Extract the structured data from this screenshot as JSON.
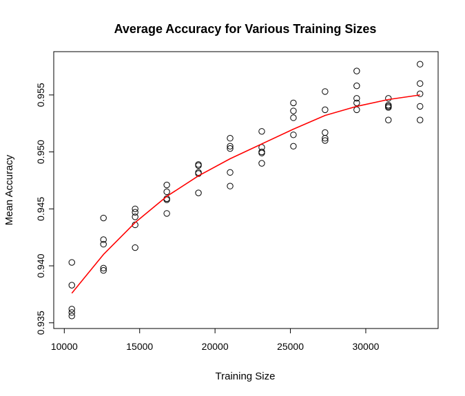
{
  "chart_data": {
    "type": "scatter",
    "title": "Average Accuracy for Various Training Sizes",
    "xlabel": "Training Size",
    "ylabel": "Mean Accuracy",
    "xlim": [
      9300,
      34800
    ],
    "ylim": [
      0.9345,
      0.9588
    ],
    "x_ticks": [
      10000,
      15000,
      20000,
      25000,
      30000
    ],
    "x_tick_labels": [
      "10000",
      "15000",
      "20000",
      "25000",
      "30000"
    ],
    "y_ticks": [
      0.935,
      0.94,
      0.945,
      0.95,
      0.955
    ],
    "y_tick_labels": [
      "0.935",
      "0.940",
      "0.945",
      "0.950",
      "0.955"
    ],
    "grid": false,
    "points": [
      [
        10500,
        0.9403
      ],
      [
        10500,
        0.9383
      ],
      [
        10500,
        0.9362
      ],
      [
        10500,
        0.9359
      ],
      [
        10500,
        0.9356
      ],
      [
        12600,
        0.9442
      ],
      [
        12600,
        0.9423
      ],
      [
        12600,
        0.9419
      ],
      [
        12600,
        0.9398
      ],
      [
        12600,
        0.9396
      ],
      [
        14700,
        0.945
      ],
      [
        14700,
        0.9447
      ],
      [
        14700,
        0.9443
      ],
      [
        14700,
        0.9436
      ],
      [
        14700,
        0.9416
      ],
      [
        16800,
        0.9471
      ],
      [
        16800,
        0.9465
      ],
      [
        16800,
        0.9459
      ],
      [
        16800,
        0.9458
      ],
      [
        16800,
        0.9446
      ],
      [
        18900,
        0.9489
      ],
      [
        18900,
        0.9488
      ],
      [
        18900,
        0.9482
      ],
      [
        18900,
        0.9481
      ],
      [
        18900,
        0.9464
      ],
      [
        21000,
        0.9512
      ],
      [
        21000,
        0.9505
      ],
      [
        21000,
        0.9503
      ],
      [
        21000,
        0.9482
      ],
      [
        21000,
        0.947
      ],
      [
        23100,
        0.9518
      ],
      [
        23100,
        0.9504
      ],
      [
        23100,
        0.95
      ],
      [
        23100,
        0.9499
      ],
      [
        23100,
        0.949
      ],
      [
        25200,
        0.9543
      ],
      [
        25200,
        0.9536
      ],
      [
        25200,
        0.953
      ],
      [
        25200,
        0.9515
      ],
      [
        25200,
        0.9505
      ],
      [
        27300,
        0.9553
      ],
      [
        27300,
        0.9537
      ],
      [
        27300,
        0.9517
      ],
      [
        27300,
        0.9512
      ],
      [
        27300,
        0.951
      ],
      [
        29400,
        0.9571
      ],
      [
        29400,
        0.9558
      ],
      [
        29400,
        0.9547
      ],
      [
        29400,
        0.9543
      ],
      [
        29400,
        0.9537
      ],
      [
        31500,
        0.9547
      ],
      [
        31500,
        0.9541
      ],
      [
        31500,
        0.954
      ],
      [
        31500,
        0.9539
      ],
      [
        31500,
        0.9528
      ],
      [
        33600,
        0.9577
      ],
      [
        33600,
        0.956
      ],
      [
        33600,
        0.9551
      ],
      [
        33600,
        0.954
      ],
      [
        33600,
        0.9528
      ]
    ],
    "series": [
      {
        "type": "line",
        "color": "#ff0000",
        "x": [
          10500,
          12600,
          14700,
          16800,
          18900,
          21000,
          23100,
          25200,
          27300,
          29400,
          31500,
          33600
        ],
        "values": [
          0.9376,
          0.941,
          0.9438,
          0.9461,
          0.9479,
          0.9494,
          0.9507,
          0.952,
          0.9532,
          0.954,
          0.9546,
          0.955
        ]
      }
    ],
    "colors": {
      "points": "#000000",
      "line": "#ff0000",
      "axes": "#000000"
    }
  }
}
